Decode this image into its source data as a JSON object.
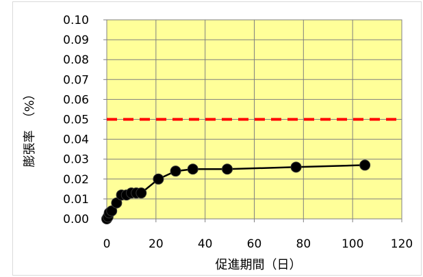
{
  "chart_data": {
    "type": "line",
    "title": "",
    "xlabel": "促進期間（日）",
    "ylabel": "膨張率　（%）",
    "xlim": [
      0,
      120
    ],
    "ylim": [
      0,
      0.1
    ],
    "x_ticks": [
      "0",
      "20",
      "40",
      "60",
      "80",
      "100",
      "120"
    ],
    "y_ticks": [
      "0.00",
      "0.01",
      "0.02",
      "0.03",
      "0.04",
      "0.05",
      "0.06",
      "0.07",
      "0.08",
      "0.09",
      "0.10"
    ],
    "grid": true,
    "plot_background": "#FFFF99",
    "series": [
      {
        "color": "#000000",
        "marker": "circle",
        "x": [
          0,
          0.5,
          1,
          2,
          4,
          6,
          8,
          10,
          12,
          14,
          21,
          28,
          35,
          49,
          77,
          105
        ],
        "y": [
          0.0,
          0.001,
          0.003,
          0.004,
          0.008,
          0.012,
          0.012,
          0.013,
          0.013,
          0.013,
          0.02,
          0.024,
          0.025,
          0.025,
          0.026,
          0.027
        ]
      }
    ],
    "reference_lines": [
      {
        "y": 0.05,
        "color": "#FF0000",
        "style": "dashed"
      }
    ]
  }
}
